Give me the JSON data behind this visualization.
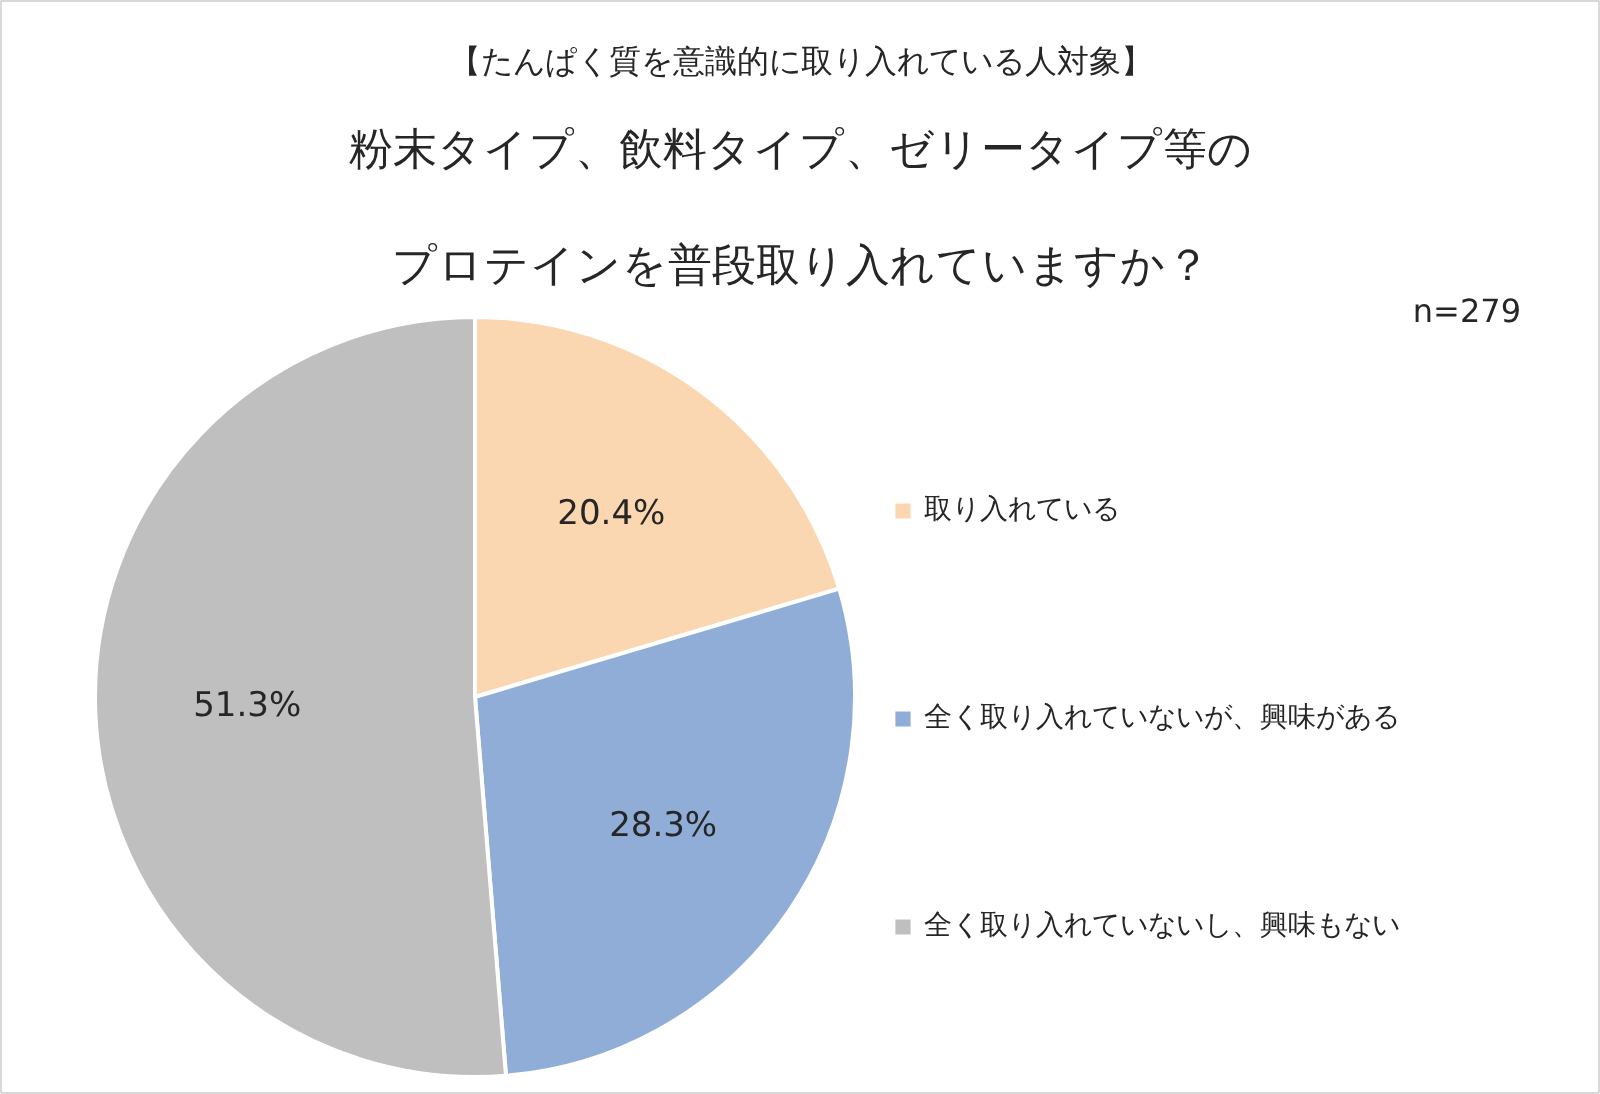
{
  "chart_data": {
    "type": "pie",
    "subtitle": "【たんぱく質を意識的に取り入れている人対象】",
    "title": "粉末タイプ、飲料タイプ、ゼリータイプ等のプロテインを普段取り入れていますか？",
    "categories": [
      "取り入れている",
      "全く取り入れていないが、興味がある",
      "全く取り入れていないし、興味もない"
    ],
    "values": [
      20.4,
      28.3,
      51.3
    ],
    "colors": [
      "#fad7b0",
      "#8fadd6",
      "#bfbfbf"
    ],
    "value_labels": [
      "20.4%",
      "28.3%",
      "51.3%"
    ],
    "legend": "right",
    "annotations": [
      "n=279"
    ]
  }
}
